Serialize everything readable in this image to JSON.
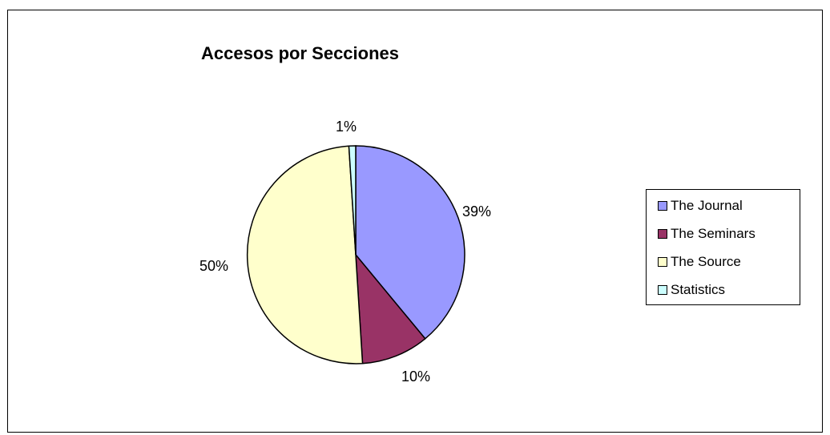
{
  "chart_data": {
    "type": "pie",
    "title": "Accesos por Secciones",
    "categories": [
      "The Journal",
      "The Seminars",
      "The Source",
      "Statistics"
    ],
    "values": [
      39,
      10,
      50,
      1
    ],
    "labels": [
      "39%",
      "10%",
      "50%",
      "1%"
    ],
    "colors": [
      "#9999ff",
      "#993366",
      "#ffffcc",
      "#ccffff"
    ],
    "legend_placement": "right"
  }
}
